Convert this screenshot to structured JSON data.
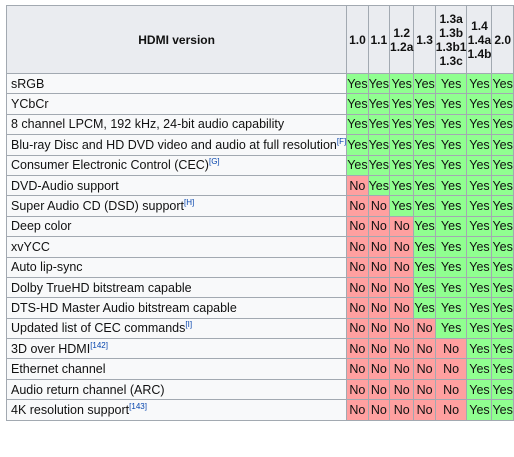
{
  "table": {
    "header": "HDMI version",
    "versions": [
      [
        "1.0"
      ],
      [
        "1.1"
      ],
      [
        "1.2",
        "1.2a"
      ],
      [
        "1.3"
      ],
      [
        "1.3a",
        "1.3b",
        "1.3b1",
        "1.3c"
      ],
      [
        "1.4",
        "1.4a",
        "1.4b"
      ],
      [
        "2.0"
      ]
    ],
    "rows": [
      {
        "feature": "sRGB",
        "note": "",
        "values": [
          "Yes",
          "Yes",
          "Yes",
          "Yes",
          "Yes",
          "Yes",
          "Yes"
        ]
      },
      {
        "feature": "YCbCr",
        "note": "",
        "values": [
          "Yes",
          "Yes",
          "Yes",
          "Yes",
          "Yes",
          "Yes",
          "Yes"
        ]
      },
      {
        "feature": "8 channel LPCM, 192 kHz, 24-bit audio capability",
        "note": "",
        "values": [
          "Yes",
          "Yes",
          "Yes",
          "Yes",
          "Yes",
          "Yes",
          "Yes"
        ]
      },
      {
        "feature": "Blu-ray Disc and HD DVD video and audio at full resolution",
        "note": "[F]",
        "values": [
          "Yes",
          "Yes",
          "Yes",
          "Yes",
          "Yes",
          "Yes",
          "Yes"
        ]
      },
      {
        "feature": "Consumer Electronic Control (CEC)",
        "note": "[G]",
        "values": [
          "Yes",
          "Yes",
          "Yes",
          "Yes",
          "Yes",
          "Yes",
          "Yes"
        ]
      },
      {
        "feature": "DVD-Audio support",
        "note": "",
        "values": [
          "No",
          "Yes",
          "Yes",
          "Yes",
          "Yes",
          "Yes",
          "Yes"
        ]
      },
      {
        "feature": "Super Audio CD (DSD) support",
        "note": "[H]",
        "values": [
          "No",
          "No",
          "Yes",
          "Yes",
          "Yes",
          "Yes",
          "Yes"
        ]
      },
      {
        "feature": "Deep color",
        "note": "",
        "values": [
          "No",
          "No",
          "No",
          "Yes",
          "Yes",
          "Yes",
          "Yes"
        ]
      },
      {
        "feature": "xvYCC",
        "note": "",
        "values": [
          "No",
          "No",
          "No",
          "Yes",
          "Yes",
          "Yes",
          "Yes"
        ]
      },
      {
        "feature": "Auto lip-sync",
        "note": "",
        "values": [
          "No",
          "No",
          "No",
          "Yes",
          "Yes",
          "Yes",
          "Yes"
        ]
      },
      {
        "feature": "Dolby TrueHD bitstream capable",
        "note": "",
        "values": [
          "No",
          "No",
          "No",
          "Yes",
          "Yes",
          "Yes",
          "Yes"
        ]
      },
      {
        "feature": "DTS-HD Master Audio bitstream capable",
        "note": "",
        "values": [
          "No",
          "No",
          "No",
          "Yes",
          "Yes",
          "Yes",
          "Yes"
        ]
      },
      {
        "feature": "Updated list of CEC commands",
        "note": "[I]",
        "values": [
          "No",
          "No",
          "No",
          "No",
          "Yes",
          "Yes",
          "Yes"
        ]
      },
      {
        "feature": "3D over HDMI",
        "note": "[142]",
        "values": [
          "No",
          "No",
          "No",
          "No",
          "No",
          "Yes",
          "Yes"
        ]
      },
      {
        "feature": "Ethernet channel",
        "note": "",
        "values": [
          "No",
          "No",
          "No",
          "No",
          "No",
          "Yes",
          "Yes"
        ]
      },
      {
        "feature": "Audio return channel (ARC)",
        "note": "",
        "values": [
          "No",
          "No",
          "No",
          "No",
          "No",
          "Yes",
          "Yes"
        ]
      },
      {
        "feature": "4K resolution support",
        "note": "[143]",
        "values": [
          "No",
          "No",
          "No",
          "No",
          "No",
          "Yes",
          "Yes"
        ]
      }
    ]
  },
  "colors": {
    "yes": "#90ff90",
    "no": "#ffa0a0",
    "header": "#eaecf0",
    "border": "#a2a9b1"
  }
}
